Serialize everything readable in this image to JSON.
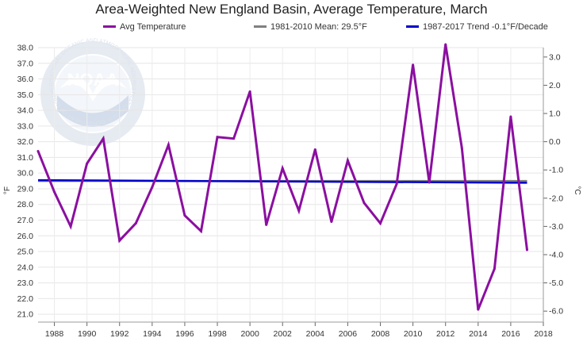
{
  "chart_data": {
    "type": "line",
    "title": "Area-Weighted New England Basin, Average Temperature, March",
    "ylabel_left": "°F",
    "ylabel_right": "°C",
    "x_ticks": [
      "1988",
      "1990",
      "1992",
      "1994",
      "1996",
      "1998",
      "2000",
      "2002",
      "2004",
      "2006",
      "2008",
      "2010",
      "2012",
      "2014",
      "2016",
      "2018"
    ],
    "y_ticks_left": [
      "21.0",
      "22.0",
      "23.0",
      "24.0",
      "25.0",
      "26.0",
      "27.0",
      "28.0",
      "29.0",
      "30.0",
      "31.0",
      "32.0",
      "33.0",
      "34.0",
      "35.0",
      "36.0",
      "37.0",
      "38.0"
    ],
    "y_ticks_right": [
      "-6.0",
      "-5.0",
      "-4.0",
      "-3.0",
      "-2.0",
      "-1.0",
      "0.0",
      "1.0",
      "2.0",
      "3.0"
    ],
    "ylim_left": [
      20.5,
      38.0
    ],
    "xlim": [
      1987,
      2018
    ],
    "grid": true,
    "legend_position": "top",
    "series": [
      {
        "name": "Avg Temperature",
        "color": "#8b0fa0",
        "x": [
          1987,
          1988,
          1989,
          1990,
          1991,
          1992,
          1993,
          1994,
          1995,
          1996,
          1997,
          1998,
          1999,
          2000,
          2001,
          2002,
          2003,
          2004,
          2005,
          2006,
          2007,
          2008,
          2009,
          2010,
          2011,
          2012,
          2013,
          2014,
          2015,
          2016,
          2017
        ],
        "values": [
          31.4,
          28.8,
          26.6,
          30.6,
          32.2,
          25.7,
          26.8,
          29.1,
          31.8,
          27.3,
          26.3,
          32.3,
          32.2,
          35.2,
          26.7,
          30.3,
          27.6,
          31.5,
          26.9,
          30.8,
          28.1,
          26.8,
          29.3,
          36.9,
          29.4,
          38.2,
          31.6,
          21.3,
          23.9,
          33.6,
          25.1
        ]
      },
      {
        "name": "1981-2010 Mean: 29.5°F",
        "color": "#808080",
        "x": [
          1987,
          2017
        ],
        "values": [
          29.5,
          29.5
        ]
      },
      {
        "name": "1987-2017 Trend -0.1°F/Decade",
        "color": "#0000cc",
        "x": [
          1987,
          2017
        ],
        "values": [
          29.55,
          29.38
        ]
      }
    ]
  },
  "watermark": {
    "logo_text": "NOAA",
    "ring_text": "NATIONAL OCEANIC AND ATMOSPHERIC ADMINISTRATION · U.S. DEPARTMENT OF COMMERCE"
  }
}
